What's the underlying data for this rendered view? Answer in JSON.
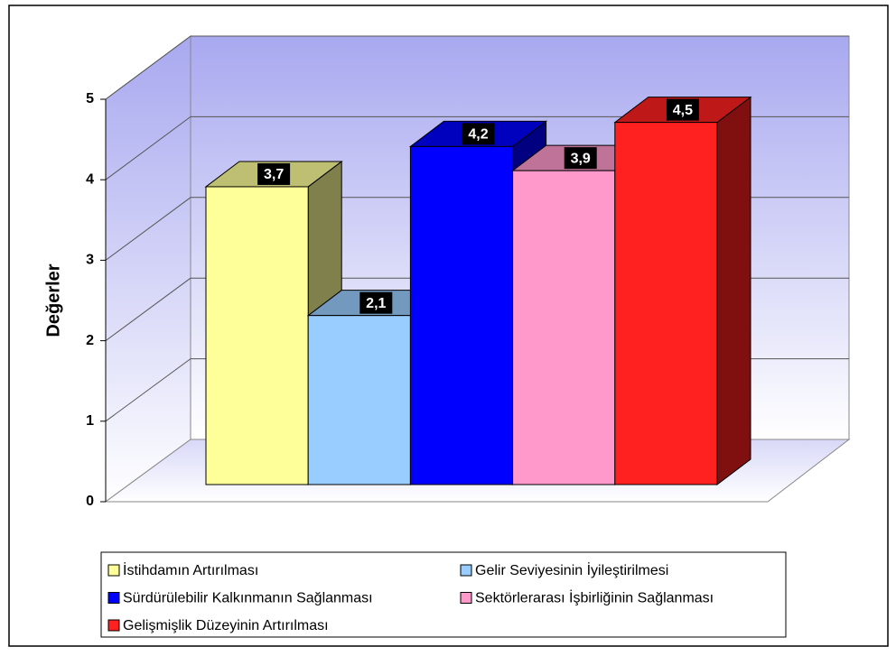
{
  "chart_data": {
    "type": "bar3d",
    "ylabel": "Değerler",
    "categories": [
      null
    ],
    "series": [
      {
        "name": "İstihdamın Artırılması",
        "color": "#ffff99",
        "values": [
          3.7
        ],
        "value_labels": [
          "3,7"
        ]
      },
      {
        "name": "Gelir Seviyesinin İyileştirilmesi",
        "color": "#99ccff",
        "values": [
          2.1
        ],
        "value_labels": [
          "2,1"
        ]
      },
      {
        "name": "Sürdürülebilir Kalkınmanın Sağlanması",
        "color": "#0000ff",
        "values": [
          4.2
        ],
        "value_labels": [
          "4,2"
        ]
      },
      {
        "name": "Sektörlerarası İşbirliğinin Sağlanması",
        "color": "#ff99cc",
        "values": [
          3.9
        ],
        "value_labels": [
          "3,9"
        ]
      },
      {
        "name": "Gelişmişlik Düzeyinin Artırılması",
        "color": "#ff2020",
        "values": [
          4.5
        ],
        "value_labels": [
          "4,5"
        ]
      }
    ],
    "ylim": [
      0,
      5
    ],
    "yticks": [
      0,
      1,
      2,
      3,
      4,
      5
    ],
    "grid": true,
    "legend": "bottom"
  }
}
